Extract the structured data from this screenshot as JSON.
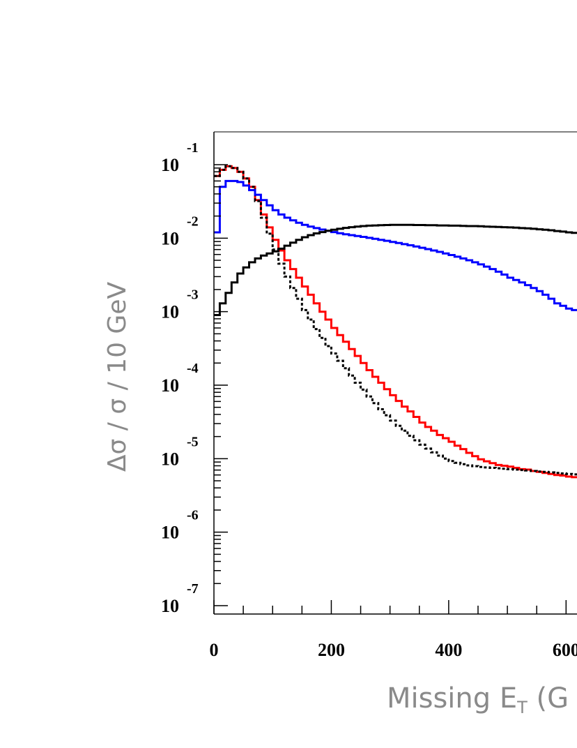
{
  "chart_data": {
    "type": "line",
    "step": true,
    "xlabel": "Missing E",
    "xlabel_sub": "T",
    "xlabel_suffix": " (G",
    "ylabel": "Δσ / σ / 10 GeV",
    "xlim": [
      0,
      620
    ],
    "ylim": [
      1e-07,
      0.18
    ],
    "yscale": "log",
    "x_ticks": [
      "0",
      "200",
      "400",
      "600"
    ],
    "y_ticks": [
      {
        "base": "10",
        "exp": "-1"
      },
      {
        "base": "10",
        "exp": "-2"
      },
      {
        "base": "10",
        "exp": "-3"
      },
      {
        "base": "10",
        "exp": "-4"
      },
      {
        "base": "10",
        "exp": "-5"
      },
      {
        "base": "10",
        "exp": "-6"
      },
      {
        "base": "10",
        "exp": "-7"
      }
    ],
    "grid": false,
    "series": [
      {
        "color": "#ff0000",
        "style": "solid",
        "x": [
          0,
          10,
          20,
          30,
          40,
          50,
          60,
          70,
          80,
          90,
          100,
          110,
          120,
          130,
          140,
          150,
          160,
          170,
          180,
          190,
          200,
          210,
          220,
          230,
          240,
          250,
          260,
          270,
          280,
          290,
          300,
          310,
          320,
          330,
          340,
          350,
          360,
          370,
          380,
          390,
          400,
          410,
          420,
          430,
          440,
          450,
          460,
          470,
          480,
          490,
          500,
          510,
          520,
          530,
          540,
          550,
          560,
          570,
          580,
          590,
          600,
          610
        ],
        "y": [
          0.07,
          0.085,
          0.095,
          0.09,
          0.08,
          0.065,
          0.05,
          0.033,
          0.021,
          0.014,
          0.0095,
          0.0068,
          0.005,
          0.0038,
          0.0029,
          0.0022,
          0.0017,
          0.0013,
          0.001,
          0.00078,
          0.0006,
          0.00048,
          0.00039,
          0.00031,
          0.00025,
          0.0002,
          0.00016,
          0.00013,
          0.000108,
          8.8e-05,
          7.3e-05,
          6.1e-05,
          5.1e-05,
          4.4e-05,
          3.7e-05,
          3.1e-05,
          2.7e-05,
          2.4e-05,
          2.1e-05,
          1.9e-05,
          1.7e-05,
          1.5e-05,
          1.35e-05,
          1.2e-05,
          1.08e-05,
          9.8e-06,
          9.2e-06,
          8.7e-06,
          8.2e-06,
          8e-06,
          7.8e-06,
          7.5e-06,
          7.2e-06,
          7.1e-06,
          6.8e-06,
          6.6e-06,
          6.4e-06,
          6.2e-06,
          6e-06,
          5.9e-06,
          5.7e-06,
          5.6e-06
        ]
      },
      {
        "color": "#000000",
        "style": "dotted",
        "x": [
          0,
          10,
          20,
          30,
          40,
          50,
          60,
          70,
          80,
          90,
          100,
          110,
          120,
          130,
          140,
          150,
          160,
          170,
          180,
          190,
          200,
          210,
          220,
          230,
          240,
          250,
          260,
          270,
          280,
          290,
          300,
          310,
          320,
          330,
          340,
          350,
          360,
          370,
          380,
          390,
          400,
          410,
          420,
          430,
          440,
          450,
          460,
          470,
          480,
          490,
          500,
          510,
          520,
          530,
          540,
          550,
          560,
          570,
          580,
          590,
          600,
          610
        ],
        "y": [
          0.07,
          0.085,
          0.095,
          0.09,
          0.08,
          0.065,
          0.05,
          0.032,
          0.019,
          0.0115,
          0.007,
          0.0045,
          0.003,
          0.0021,
          0.0015,
          0.00105,
          0.00078,
          0.00058,
          0.00044,
          0.00034,
          0.00027,
          0.000215,
          0.00017,
          0.000135,
          0.000108,
          8.7e-05,
          7e-05,
          5.7e-05,
          4.7e-05,
          3.9e-05,
          3.3e-05,
          2.8e-05,
          2.4e-05,
          2.05e-05,
          1.78e-05,
          1.55e-05,
          1.37e-05,
          1.22e-05,
          1.1e-05,
          1e-05,
          9.3e-06,
          8.8e-06,
          8.4e-06,
          8.1e-06,
          7.9e-06,
          7.7e-06,
          7.6e-06,
          7.5e-06,
          7.4e-06,
          7.3e-06,
          7.2e-06,
          7.1e-06,
          7e-06,
          6.9e-06,
          6.8e-06,
          6.7e-06,
          6.6e-06,
          6.5e-06,
          6.4e-06,
          6.3e-06,
          6.2e-06,
          6.1e-06
        ]
      },
      {
        "color": "#0000ff",
        "style": "solid",
        "x": [
          0,
          10,
          20,
          30,
          40,
          50,
          60,
          70,
          80,
          90,
          100,
          110,
          120,
          130,
          140,
          150,
          160,
          170,
          180,
          190,
          200,
          210,
          220,
          230,
          240,
          250,
          260,
          270,
          280,
          290,
          300,
          310,
          320,
          330,
          340,
          350,
          360,
          370,
          380,
          390,
          400,
          410,
          420,
          430,
          440,
          450,
          460,
          470,
          480,
          490,
          500,
          510,
          520,
          530,
          540,
          550,
          560,
          570,
          580,
          590,
          600,
          610
        ],
        "y": [
          0.012,
          0.05,
          0.06,
          0.06,
          0.058,
          0.052,
          0.045,
          0.039,
          0.033,
          0.028,
          0.024,
          0.021,
          0.019,
          0.0175,
          0.0162,
          0.0152,
          0.0144,
          0.0137,
          0.0131,
          0.0126,
          0.0121,
          0.0117,
          0.0113,
          0.011,
          0.0107,
          0.0104,
          0.0101,
          0.0098,
          0.0095,
          0.0092,
          0.0089,
          0.0086,
          0.0083,
          0.008,
          0.0077,
          0.0074,
          0.0071,
          0.0068,
          0.0065,
          0.0062,
          0.0059,
          0.0056,
          0.0053,
          0.005,
          0.0047,
          0.0044,
          0.0041,
          0.0038,
          0.0035,
          0.0032,
          0.0029,
          0.0027,
          0.0025,
          0.0023,
          0.0021,
          0.0019,
          0.0017,
          0.0015,
          0.0013,
          0.0012,
          0.0011,
          0.00105
        ]
      },
      {
        "color": "#000000",
        "style": "solid",
        "x": [
          0,
          10,
          20,
          30,
          40,
          50,
          60,
          70,
          80,
          90,
          100,
          110,
          120,
          130,
          140,
          150,
          160,
          170,
          180,
          190,
          200,
          210,
          220,
          230,
          240,
          250,
          260,
          270,
          280,
          290,
          300,
          310,
          320,
          330,
          340,
          350,
          360,
          370,
          380,
          390,
          400,
          410,
          420,
          430,
          440,
          450,
          460,
          470,
          480,
          490,
          500,
          510,
          520,
          530,
          540,
          550,
          560,
          570,
          580,
          590,
          600,
          610
        ],
        "y": [
          0.0009,
          0.0013,
          0.0018,
          0.0025,
          0.0033,
          0.004,
          0.0047,
          0.0053,
          0.0058,
          0.0062,
          0.0066,
          0.0072,
          0.0079,
          0.0087,
          0.0095,
          0.0103,
          0.011,
          0.0116,
          0.0121,
          0.0126,
          0.013,
          0.0134,
          0.0138,
          0.0141,
          0.0144,
          0.0146,
          0.0148,
          0.0149,
          0.015,
          0.0151,
          0.0152,
          0.0152,
          0.0152,
          0.0152,
          0.0151,
          0.0151,
          0.015,
          0.015,
          0.0149,
          0.0149,
          0.0148,
          0.0148,
          0.0147,
          0.0146,
          0.0146,
          0.0145,
          0.0144,
          0.0143,
          0.0142,
          0.0141,
          0.014,
          0.0139,
          0.0137,
          0.0136,
          0.0134,
          0.0132,
          0.013,
          0.0128,
          0.0125,
          0.0123,
          0.012,
          0.0118
        ]
      }
    ]
  }
}
